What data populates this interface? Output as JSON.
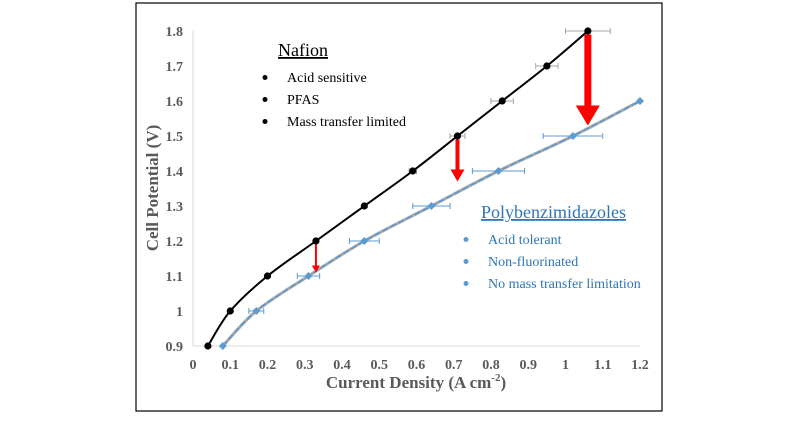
{
  "chart_data": {
    "type": "line",
    "xlabel": "Current Density (A cm",
    "xlabel_sup": "-2",
    "xlabel_close": ")",
    "ylabel": "Cell Potential (V)",
    "xlim": [
      0,
      1.2
    ],
    "ylim": [
      0.9,
      1.8
    ],
    "x_ticks": [
      0,
      0.1,
      0.2,
      0.3,
      0.4,
      0.5,
      0.6,
      0.7,
      0.8,
      0.9,
      1,
      1.1,
      1.2
    ],
    "x_tick_labels": [
      "0",
      "0.1",
      "0.2",
      "0.3",
      "0.4",
      "0.5",
      "0.6",
      "0.7",
      "0.8",
      "0.9",
      "1",
      "1.1",
      "1.2"
    ],
    "y_ticks": [
      0.9,
      1.0,
      1.1,
      1.2,
      1.3,
      1.4,
      1.5,
      1.6,
      1.7,
      1.8
    ],
    "y_tick_labels": [
      "0.9",
      "1",
      "1.1",
      "1.2",
      "1.3",
      "1.4",
      "1.5",
      "1.6",
      "1.7",
      "1.8"
    ],
    "grid": false,
    "series": [
      {
        "color": "#000000",
        "x": [
          0.04,
          0.1,
          0.2,
          0.33,
          0.46,
          0.59,
          0.71,
          0.83,
          0.95,
          1.06
        ],
        "y": [
          0.9,
          1.0,
          1.1,
          1.2,
          1.3,
          1.4,
          1.5,
          1.6,
          1.7,
          1.8
        ],
        "x_error": [
          0.0,
          0.0,
          0.0,
          0.0,
          0.0,
          0.01,
          0.02,
          0.03,
          0.03,
          0.06
        ]
      },
      {
        "color": "#5b9bd5",
        "x": [
          0.08,
          0.17,
          0.31,
          0.46,
          0.64,
          0.82,
          1.02,
          1.2
        ],
        "y": [
          0.9,
          1.0,
          1.1,
          1.2,
          1.3,
          1.4,
          1.5,
          1.6
        ],
        "x_error": [
          0.0,
          0.02,
          0.03,
          0.04,
          0.05,
          0.07,
          0.08,
          0.0
        ]
      }
    ],
    "arrows": [
      {
        "x": 0.33,
        "y_from": 1.19,
        "y_to": 1.11,
        "size": "small"
      },
      {
        "x": 0.71,
        "y_from": 1.49,
        "y_to": 1.37,
        "size": "medium"
      },
      {
        "x": 1.06,
        "y_from": 1.79,
        "y_to": 1.53,
        "size": "large"
      }
    ],
    "annotations": [
      {
        "title": "Nafion",
        "title_color": "#000000",
        "bullet_color": "#000000",
        "items": [
          "Acid sensitive",
          "PFAS",
          "Mass transfer limited"
        ]
      },
      {
        "title": "Polybenzimidazoles",
        "title_color": "#2e75b6",
        "bullet_color": "#5b9bd5",
        "items": [
          "Acid tolerant",
          "Non-fluorinated",
          "No mass transfer limitation"
        ]
      }
    ]
  }
}
